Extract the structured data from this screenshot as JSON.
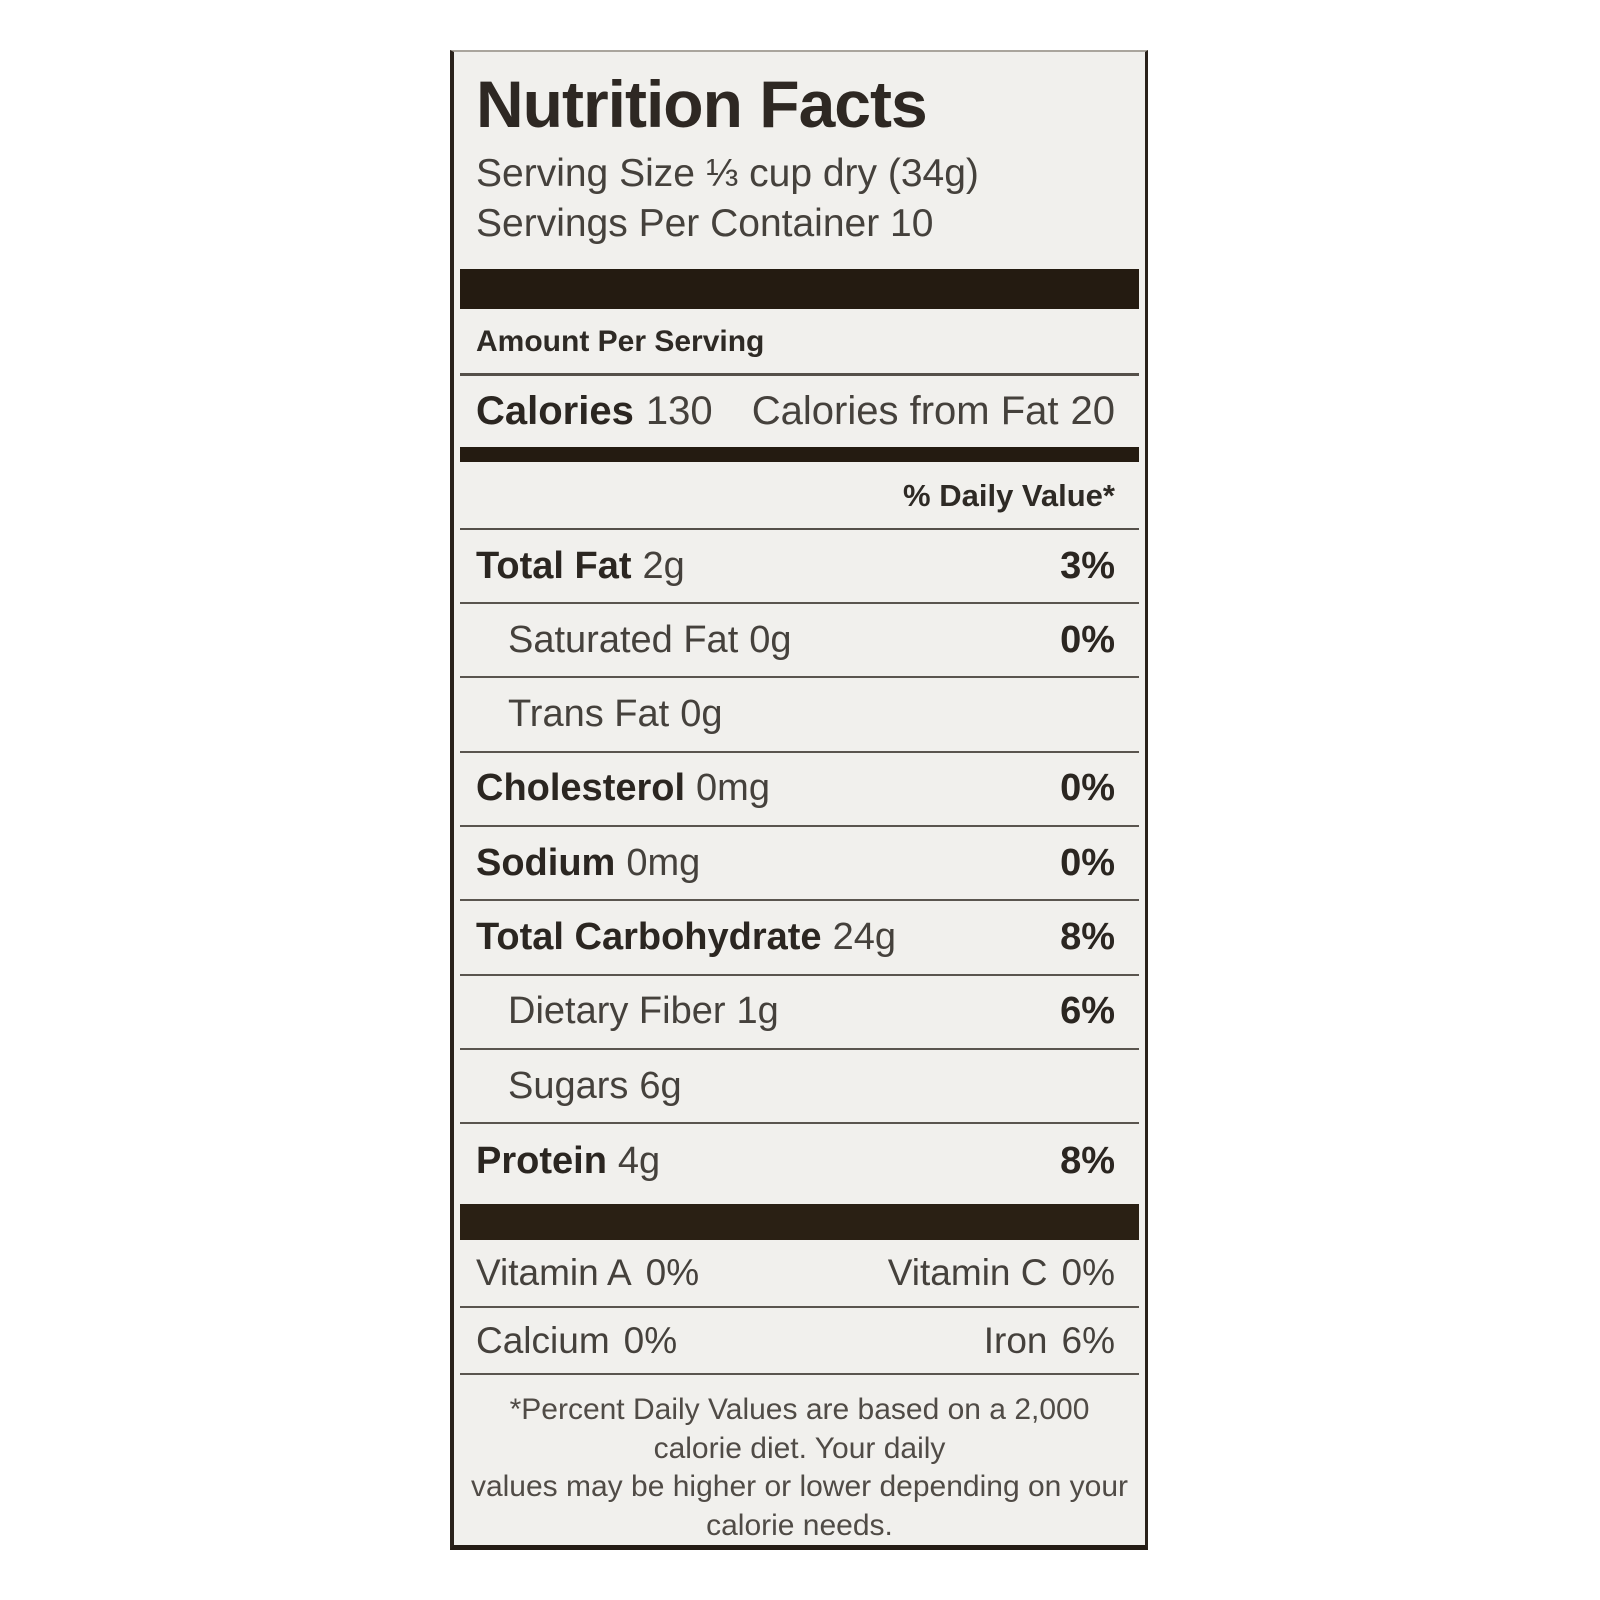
{
  "label": {
    "title": "Nutrition Facts",
    "serving_size": "Serving Size ⅓ cup dry (34g)",
    "servings_per_container": "Servings Per Container 10",
    "amount_per_serving": "Amount Per Serving",
    "calories": {
      "label": "Calories",
      "value": "130"
    },
    "calories_from_fat": {
      "label": "Calories from Fat",
      "value": "20"
    },
    "daily_value_header": "% Daily Value*",
    "nutrients": [
      {
        "name": "Total Fat",
        "amount": "2g",
        "dv": "3%"
      },
      {
        "name": "Saturated Fat",
        "amount": "0g",
        "dv": "0%"
      },
      {
        "name": "Trans Fat",
        "amount": "0g",
        "dv": ""
      },
      {
        "name": "Cholesterol",
        "amount": "0mg",
        "dv": "0%"
      },
      {
        "name": "Sodium",
        "amount": "0mg",
        "dv": "0%"
      },
      {
        "name": "Total Carbohydrate",
        "amount": "24g",
        "dv": "8%"
      },
      {
        "name": "Dietary Fiber",
        "amount": "1g",
        "dv": "6%"
      },
      {
        "name": "Sugars",
        "amount": "6g",
        "dv": ""
      },
      {
        "name": "Protein",
        "amount": "4g",
        "dv": "8%"
      }
    ],
    "micronutrients": [
      {
        "left_name": "Vitamin A",
        "left_value": "0%",
        "right_name": "Vitamin C",
        "right_value": "0%"
      },
      {
        "left_name": "Calcium",
        "left_value": "0%",
        "right_name": "Iron",
        "right_value": "6%"
      }
    ],
    "footnote_line1": "*Percent Daily Values are based on a 2,000 calorie diet. Your daily",
    "footnote_line2": "values may be higher or lower depending on your calorie needs.",
    "colors": {
      "label_background": "#f1f0ed",
      "bar_color": "#241b11",
      "text_dark": "#2b2621",
      "text_regular": "#45413c"
    }
  }
}
